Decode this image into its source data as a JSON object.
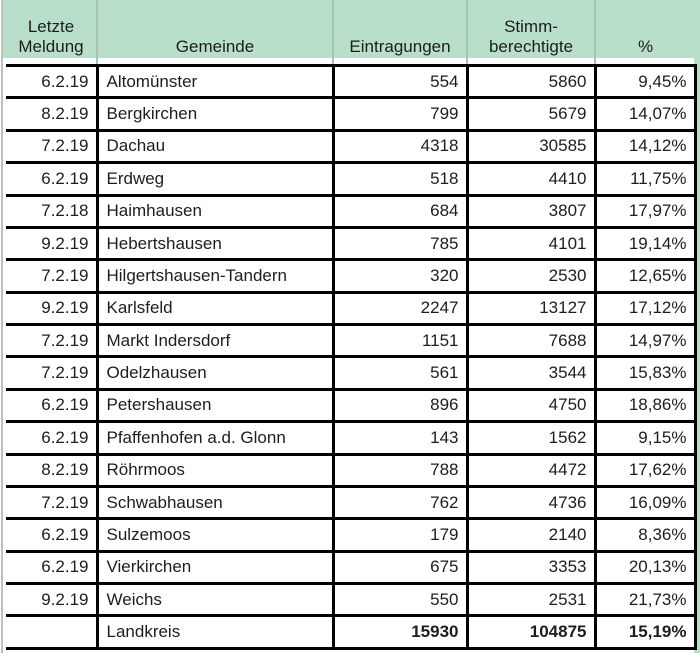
{
  "header": {
    "letzte_meldung_line1": "Letzte",
    "letzte_meldung_line2": "Meldung",
    "gemeinde": "Gemeinde",
    "eintragungen": "Eintragungen",
    "stimmberechtigte_line1": "Stimm-",
    "stimmberechtigte_line2": "berechtigte",
    "prozent": "%"
  },
  "rows": [
    {
      "meldung": "6.2.19",
      "gemeinde": "Altomünster",
      "eintragungen": "554",
      "stimmberechtigte": "5860",
      "prozent": "9,45%"
    },
    {
      "meldung": "8.2.19",
      "gemeinde": "Bergkirchen",
      "eintragungen": "799",
      "stimmberechtigte": "5679",
      "prozent": "14,07%"
    },
    {
      "meldung": "7.2.19",
      "gemeinde": "Dachau",
      "eintragungen": "4318",
      "stimmberechtigte": "30585",
      "prozent": "14,12%"
    },
    {
      "meldung": "6.2.19",
      "gemeinde": "Erdweg",
      "eintragungen": "518",
      "stimmberechtigte": "4410",
      "prozent": "11,75%"
    },
    {
      "meldung": "7.2.18",
      "gemeinde": "Haimhausen",
      "eintragungen": "684",
      "stimmberechtigte": "3807",
      "prozent": "17,97%"
    },
    {
      "meldung": "9.2.19",
      "gemeinde": "Hebertshausen",
      "eintragungen": "785",
      "stimmberechtigte": "4101",
      "prozent": "19,14%"
    },
    {
      "meldung": "7.2.19",
      "gemeinde": "Hilgertshausen-Tandern",
      "eintragungen": "320",
      "stimmberechtigte": "2530",
      "prozent": "12,65%"
    },
    {
      "meldung": "9.2.19",
      "gemeinde": "Karlsfeld",
      "eintragungen": "2247",
      "stimmberechtigte": "13127",
      "prozent": "17,12%"
    },
    {
      "meldung": "7.2.19",
      "gemeinde": "Markt Indersdorf",
      "eintragungen": "1151",
      "stimmberechtigte": "7688",
      "prozent": "14,97%"
    },
    {
      "meldung": "7.2.19",
      "gemeinde": "Odelzhausen",
      "eintragungen": "561",
      "stimmberechtigte": "3544",
      "prozent": "15,83%"
    },
    {
      "meldung": "6.2.19",
      "gemeinde": "Petershausen",
      "eintragungen": "896",
      "stimmberechtigte": "4750",
      "prozent": "18,86%"
    },
    {
      "meldung": "6.2.19",
      "gemeinde": "Pfaffenhofen a.d. Glonn",
      "eintragungen": "143",
      "stimmberechtigte": "1562",
      "prozent": "9,15%"
    },
    {
      "meldung": "8.2.19",
      "gemeinde": "Röhrmoos",
      "eintragungen": "788",
      "stimmberechtigte": "4472",
      "prozent": "17,62%"
    },
    {
      "meldung": "7.2.19",
      "gemeinde": "Schwabhausen",
      "eintragungen": "762",
      "stimmberechtigte": "4736",
      "prozent": "16,09%"
    },
    {
      "meldung": "6.2.19",
      "gemeinde": "Sulzemoos",
      "eintragungen": "179",
      "stimmberechtigte": "2140",
      "prozent": "8,36%"
    },
    {
      "meldung": "6.2.19",
      "gemeinde": "Vierkirchen",
      "eintragungen": "675",
      "stimmberechtigte": "3353",
      "prozent": "20,13%"
    },
    {
      "meldung": "9.2.19",
      "gemeinde": "Weichs",
      "eintragungen": "550",
      "stimmberechtigte": "2531",
      "prozent": "21,73%"
    }
  ],
  "total": {
    "meldung": "",
    "gemeinde": "Landkreis",
    "eintragungen": "15930",
    "stimmberechtigte": "104875",
    "prozent": "15,19%"
  },
  "colors": {
    "header_green": "#b9dfca",
    "header_separator": "#a4c6b3",
    "border_black": "#000000",
    "gridline_gray": "#bdc2bd",
    "text": "#1d1d1d"
  }
}
